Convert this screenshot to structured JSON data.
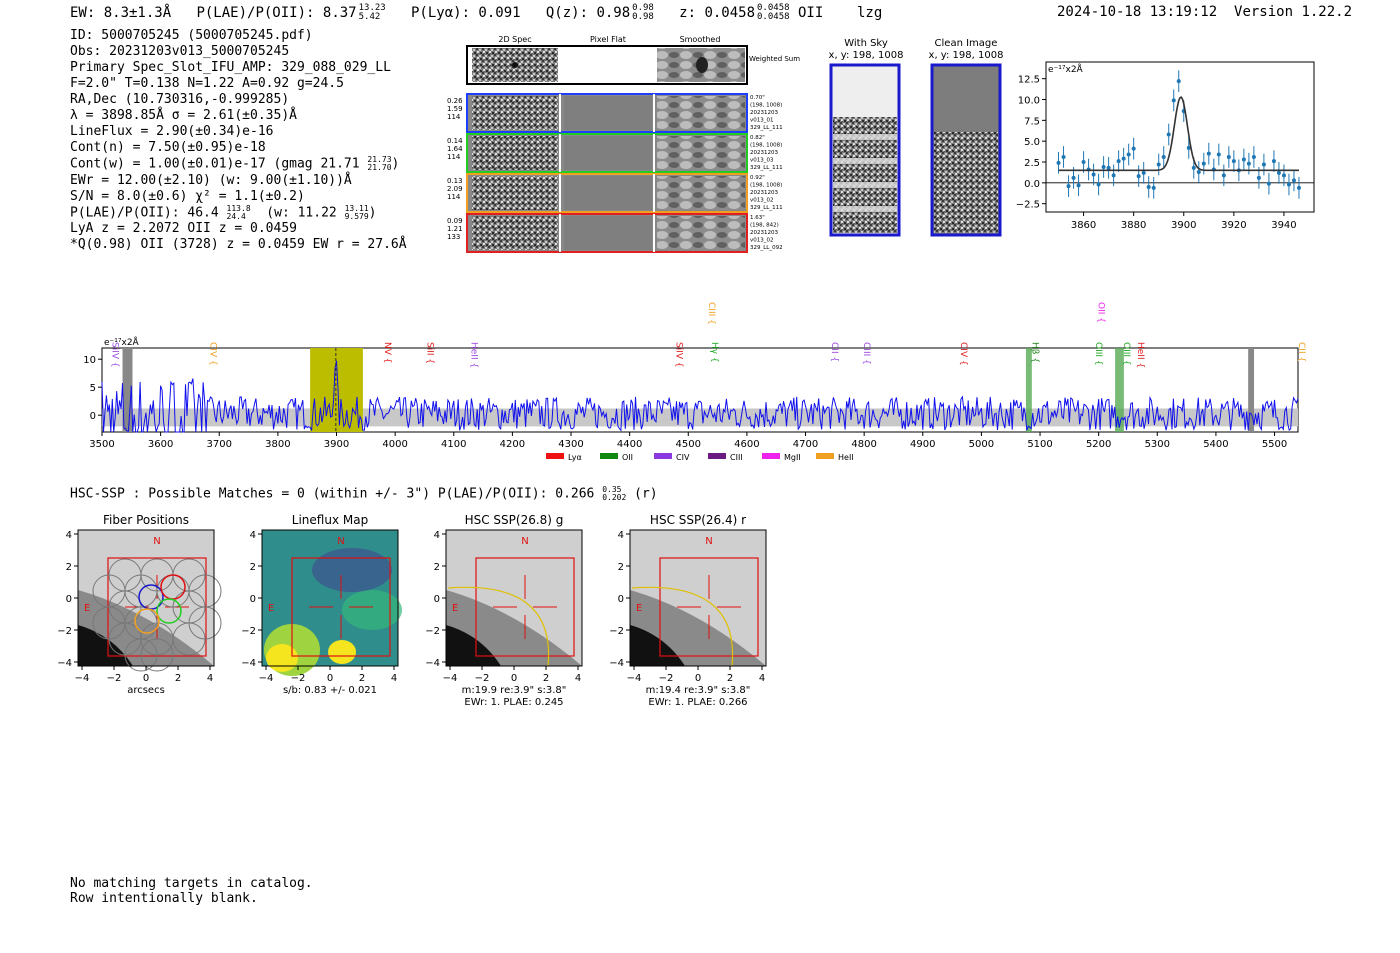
{
  "header": {
    "ew": "EW: 8.3±1.3Å",
    "plae": "P(LAE)/P(OII): 8.37",
    "plae_hi": "13.23",
    "plae_lo": "5.42",
    "plya": "P(Lyα): 0.091",
    "qz": "Q(z): 0.98",
    "qz_hi": "0.98",
    "qz_lo": "0.98",
    "z": "z: 0.0458",
    "z_hi": "0.0458",
    "z_lo": "0.0458",
    "z_line": "OII",
    "flag": "lzg",
    "datetime": "2024-10-18 13:19:12",
    "version": "Version 1.22.2"
  },
  "info": {
    "id": "ID: 5000705245 (5000705245.pdf)",
    "obs": "Obs: 20231203v013_5000705245",
    "primary": "Primary Spec_Slot_IFU_AMP: 329_088_029_LL",
    "fparams": "F=2.0\"  T=0.138  N=1.22  A=0.92  g=24.5",
    "radec": "RA,Dec (10.730316,-0.999285)",
    "lambda": "λ = 3898.85Å  σ = 2.61(±0.35)Å",
    "lineflux": "LineFlux = 2.90(±0.34)e-16",
    "contn": "Cont(n) = 7.50(±0.95)e-18",
    "contw": "Cont(w) = 1.00(±0.01)e-17 (gmag 21.71",
    "contw_hi": "21.73",
    "contw_lo": "21.70",
    "ewr": "EWr = 12.00(±2.10) (w: 9.00(±1.10))Å",
    "sn": "S/N = 8.0(±0.6)  χ² = 1.1(±0.2)",
    "plae2": "P(LAE)/P(OII): 46.4",
    "plae2_hi": "113.8",
    "plae2_lo": "24.4",
    "plae2_w": "(w: 11.22",
    "plae2_w_hi": "13.11",
    "plae2_w_lo": "9.579",
    "lya": "LyA z = 2.2072  OII z = 0.0459",
    "q": "*Q(0.98) OII (3728) z = 0.0459  EW r = 27.6Å"
  },
  "cutouts": {
    "col_titles": [
      "2D Spec",
      "Pixel Flat",
      "Smoothed"
    ],
    "weighted_label": "Weighted Sum",
    "rows": [
      {
        "left": [
          "0.26",
          "1.59",
          "114"
        ],
        "right": [
          "0.70\"",
          "(198, 1008)",
          "20231203",
          "v013_01",
          "329_LL_111"
        ],
        "color": "#1f3fff"
      },
      {
        "left": [
          "0.14",
          "1.64",
          "114"
        ],
        "right": [
          "0.82\"",
          "(198, 1008)",
          "20231203",
          "v013_03",
          "329_LL_111"
        ],
        "color": "#22cc22"
      },
      {
        "left": [
          "0.13",
          "2.09",
          "114"
        ],
        "right": [
          "0.92\"",
          "(198, 1008)",
          "20231203",
          "v013_02",
          "329_LL_111"
        ],
        "color": "#f0a020"
      },
      {
        "left": [
          "0.09",
          "1.21",
          "133"
        ],
        "right": [
          "1.63\"",
          "(198, 842)",
          "20231203",
          "v013_02",
          "329_LL_092"
        ],
        "color": "#e02020"
      }
    ]
  },
  "sky": {
    "with_sky_title": "With Sky",
    "with_sky_xy": "x, y: 198, 1008",
    "clean_title": "Clean Image",
    "clean_xy": "x, y: 198, 1008"
  },
  "fit_plot": {
    "ylabel": "e⁻¹⁷x2Å",
    "xticks": [
      "3860",
      "3880",
      "3900",
      "3920",
      "3940"
    ],
    "yticks": [
      "12.5",
      "10.0",
      "7.5",
      "5.0",
      "2.5",
      "0.0",
      "−2.5"
    ]
  },
  "chart_data": [
    {
      "type": "scatter",
      "title": "",
      "ylabel": "e⁻¹⁷x2Å",
      "xlim": [
        3845,
        3952
      ],
      "ylim": [
        -3.5,
        14.5
      ],
      "x": [
        3850,
        3852,
        3854,
        3856,
        3858,
        3860,
        3862,
        3864,
        3866,
        3868,
        3870,
        3872,
        3874,
        3876,
        3878,
        3880,
        3882,
        3884,
        3886,
        3888,
        3890,
        3892,
        3894,
        3896,
        3898,
        3900,
        3902,
        3904,
        3906,
        3908,
        3910,
        3912,
        3914,
        3916,
        3918,
        3920,
        3922,
        3924,
        3926,
        3928,
        3930,
        3932,
        3934,
        3936,
        3938,
        3940,
        3942,
        3944,
        3946
      ],
      "y": [
        2.4,
        3.1,
        -0.4,
        0.6,
        -0.3,
        2.5,
        1.6,
        1.0,
        -0.2,
        1.9,
        1.8,
        0.9,
        2.6,
        2.9,
        3.4,
        4.1,
        0.8,
        1.2,
        -0.5,
        -0.6,
        2.2,
        3.1,
        5.8,
        9.9,
        12.2,
        8.6,
        4.2,
        1.8,
        1.3,
        2.3,
        3.5,
        1.6,
        3.4,
        0.9,
        3.1,
        2.6,
        1.5,
        2.8,
        2.3,
        3.1,
        0.6,
        2.2,
        -0.1,
        2.6,
        1.2,
        0.9,
        -0.2,
        0.3,
        -0.6
      ],
      "model_center": 3898.85,
      "model_sigma": 2.61,
      "model_peak": 10.3,
      "model_continuum": 1.5
    },
    {
      "type": "line",
      "xlabel": "",
      "ylabel": "e⁻¹⁷x2Å",
      "xlim": [
        3500,
        5540
      ],
      "ylim": [
        -3,
        12
      ],
      "xticks": [
        "3500",
        "3600",
        "3700",
        "3800",
        "3900",
        "4000",
        "4100",
        "4200",
        "4300",
        "4400",
        "4500",
        "4600",
        "4700",
        "4800",
        "4900",
        "5000",
        "5100",
        "5200",
        "5300",
        "5400",
        "5500"
      ],
      "yticks": [
        "10",
        "5",
        "0"
      ],
      "highlight_band": [
        3855,
        3945
      ],
      "emission_line": 3898.85,
      "green_bands": [
        [
          5076,
          5086
        ],
        [
          5228,
          5243
        ]
      ],
      "gray_bands": [
        [
          3535,
          3552
        ],
        [
          5455,
          5465
        ]
      ],
      "line_labels": [
        {
          "name": "SiIV",
          "x": 3513,
          "color": "#9a4be0"
        },
        {
          "name": "CIV",
          "x": 3680,
          "color": "#f0a020"
        },
        {
          "name": "NV",
          "x": 3978,
          "color": "#e02020"
        },
        {
          "name": "SiII",
          "x": 4050,
          "color": "#e02020"
        },
        {
          "name": "HeII",
          "x": 4125,
          "color": "#9a4be0"
        },
        {
          "name": "SiIV",
          "x": 4475,
          "color": "#e02020"
        },
        {
          "name": "CIII",
          "x": 4530,
          "color": "#f0a020"
        },
        {
          "name": "Hγ",
          "x": 4535,
          "color": "#22aa22"
        },
        {
          "name": "CII",
          "x": 4740,
          "color": "#9a4be0"
        },
        {
          "name": "CIII",
          "x": 4795,
          "color": "#9a4be0"
        },
        {
          "name": "CIV",
          "x": 4960,
          "color": "#e02020"
        },
        {
          "name": "Hβ",
          "x": 5082,
          "color": "#228822"
        },
        {
          "name": "OIII",
          "x": 5190,
          "color": "#22aa22"
        },
        {
          "name": "OII",
          "x": 5195,
          "color": "#ee22ee"
        },
        {
          "name": "OIII",
          "x": 5238,
          "color": "#22aa22"
        },
        {
          "name": "HeII",
          "x": 5262,
          "color": "#e02020"
        },
        {
          "name": "CII",
          "x": 5537,
          "color": "#f0a020"
        }
      ],
      "legend": [
        {
          "name": "Lyα",
          "color": "#ee1111"
        },
        {
          "name": "OII",
          "color": "#118811"
        },
        {
          "name": "CIV",
          "color": "#8a3be0"
        },
        {
          "name": "CIII",
          "color": "#6a1a80"
        },
        {
          "name": "MgII",
          "color": "#ee22ee"
        },
        {
          "name": "HeII",
          "color": "#f0a020"
        }
      ]
    }
  ],
  "hsc": {
    "summary": "HSC-SSP : Possible Matches = 0 (within +/- 3\")  P(LAE)/P(OII): 0.266",
    "summary_hi": "0.35",
    "summary_lo": "0.202",
    "summary_band": "(r)",
    "panels": [
      {
        "title": "Fiber Positions",
        "caption": [
          "arcsecs"
        ]
      },
      {
        "title": "Lineflux Map",
        "caption": [
          "s/b: 0.83 +/- 0.021"
        ]
      },
      {
        "title": "HSC SSP(26.8) g",
        "caption": [
          "m:19.9  re:3.9\"  s:3.8\"",
          "EWr: 1. PLAE: 0.245"
        ]
      },
      {
        "title": "HSC SSP(26.4) r",
        "caption": [
          "m:19.4  re:3.9\"  s:3.8\"",
          "EWr: 1. PLAE: 0.266"
        ]
      }
    ],
    "ticks": [
      "−4",
      "−2",
      "0",
      "2",
      "4"
    ],
    "yticks": [
      "4",
      "2",
      "0",
      "−2",
      "−4"
    ],
    "n_label": "N",
    "e_label": "E"
  },
  "footer": {
    "line1": "No matching targets in catalog.",
    "line2": "Row intentionally blank."
  }
}
